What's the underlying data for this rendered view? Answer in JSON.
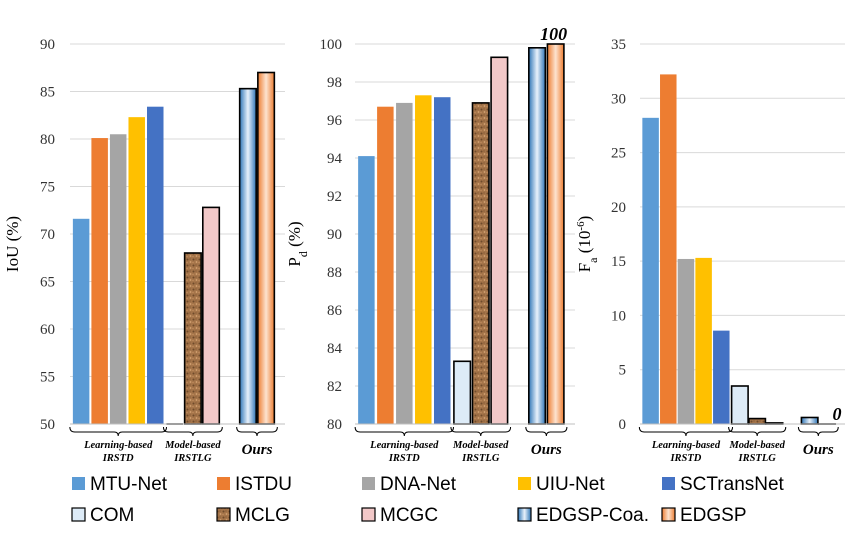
{
  "colors": {
    "MTU-Net": "#5b9bd5",
    "ISTDU": "#ed7d31",
    "DNA-Net": "#a5a5a5",
    "UIU-Net": "#ffc000",
    "SCTransNet": "#4472c4",
    "COM": "#ddebf7",
    "MCLG": "#a47449",
    "MCGC": "#f2c8c8",
    "EDGSP-Coa.": "#4a8fcf",
    "EDGSP": "#f4a46a"
  },
  "legend": {
    "items": [
      "MTU-Net",
      "ISTDU",
      "DNA-Net",
      "UIU-Net",
      "SCTransNet",
      "COM",
      "MCLG",
      "MCGC",
      "EDGSP-Coa.",
      "EDGSP"
    ]
  },
  "group_labels": {
    "learning": [
      "Learning-based",
      "IRSTD"
    ],
    "model": [
      "Model-based",
      "IRSTLG"
    ],
    "ours": "Ours"
  },
  "chart_data": [
    {
      "type": "bar",
      "ylabel": "IoU (%)",
      "ylim": [
        50,
        90
      ],
      "yticks": [
        50,
        55,
        60,
        65,
        70,
        75,
        80,
        85,
        90
      ],
      "categories": [
        "MTU-Net",
        "ISTDU",
        "DNA-Net",
        "UIU-Net",
        "SCTransNet",
        "COM",
        "MCLG",
        "MCGC",
        "EDGSP-Coa.",
        "EDGSP"
      ],
      "values": [
        71.6,
        80.1,
        80.5,
        82.3,
        83.4,
        null,
        68.0,
        72.8,
        85.3,
        87.0
      ],
      "annotations": []
    },
    {
      "type": "bar",
      "ylabel": "P",
      "ylabel_sub": "d",
      "ylabel_suffix": " (%)",
      "ylim": [
        80,
        100
      ],
      "yticks": [
        80,
        82,
        84,
        86,
        88,
        90,
        92,
        94,
        96,
        98,
        100
      ],
      "categories": [
        "MTU-Net",
        "ISTDU",
        "DNA-Net",
        "UIU-Net",
        "SCTransNet",
        "COM",
        "MCLG",
        "MCGC",
        "EDGSP-Coa.",
        "EDGSP"
      ],
      "values": [
        94.1,
        96.7,
        96.9,
        97.3,
        97.2,
        83.3,
        96.9,
        99.3,
        99.8,
        100
      ],
      "annotations": [
        {
          "category": "EDGSP",
          "text": "100"
        }
      ]
    },
    {
      "type": "bar",
      "ylabel": "F",
      "ylabel_sub": "a",
      "ylabel_suffix": " (10",
      "ylabel_sup": "-6",
      "ylabel_end": ")",
      "ylim": [
        0,
        35
      ],
      "yticks": [
        0,
        5,
        10,
        15,
        20,
        25,
        30,
        35
      ],
      "categories": [
        "MTU-Net",
        "ISTDU",
        "DNA-Net",
        "UIU-Net",
        "SCTransNet",
        "COM",
        "MCLG",
        "MCGC",
        "EDGSP-Coa.",
        "EDGSP"
      ],
      "values": [
        28.2,
        32.2,
        15.2,
        15.3,
        8.6,
        3.5,
        0.5,
        0.1,
        0.6,
        0
      ],
      "annotations": [
        {
          "category": "EDGSP",
          "text": "0"
        }
      ]
    }
  ]
}
